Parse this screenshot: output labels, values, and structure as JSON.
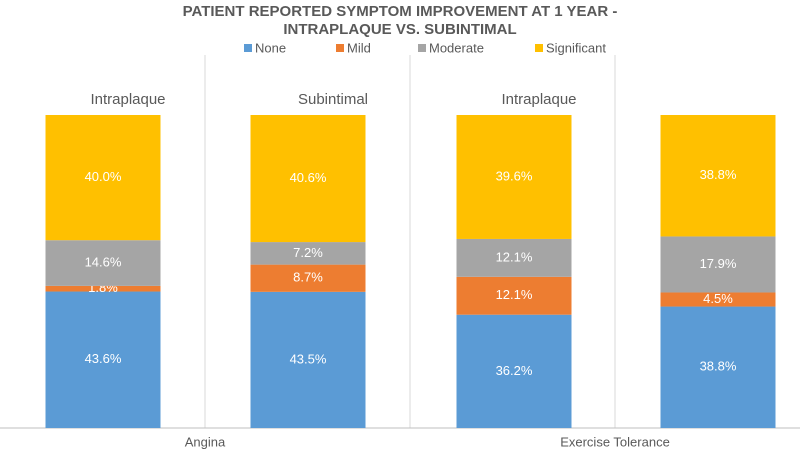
{
  "chart_data": {
    "type": "stacked_bar",
    "title": [
      "PATIENT REPORTED SYMPTOM IMPROVEMENT AT 1 YEAR -",
      "INTRAPLAQUE VS. SUBINTIMAL"
    ],
    "categories": [
      "Intraplaque",
      "Subintimal",
      "Intraplaque",
      null
    ],
    "groups": [
      "Angina",
      "Exercise Tolerance"
    ],
    "ylim": [
      0,
      100
    ],
    "series": [
      {
        "name": "None",
        "color": "#5b9bd5",
        "values": [
          43.6,
          43.5,
          36.2,
          38.8
        ],
        "value_labels": [
          "43.6%",
          "43.5%",
          "36.2%",
          "38.8%"
        ]
      },
      {
        "name": "Mild",
        "color": "#ed7d31",
        "values": [
          1.8,
          8.7,
          12.1,
          4.5
        ],
        "value_labels": [
          "1.8%",
          "8.7%",
          "12.1%",
          "4.5%"
        ]
      },
      {
        "name": "Moderate",
        "color": "#a5a5a5",
        "values": [
          14.6,
          7.2,
          12.1,
          17.9
        ],
        "value_labels": [
          "14.6%",
          "7.2%",
          "12.1%",
          "17.9%"
        ]
      },
      {
        "name": "Significant",
        "color": "#ffc000",
        "values": [
          40.0,
          40.6,
          39.6,
          38.8
        ],
        "value_labels": [
          "40.0%",
          "40.6%",
          "39.6%",
          "38.8%"
        ]
      }
    ],
    "legend": "top"
  }
}
